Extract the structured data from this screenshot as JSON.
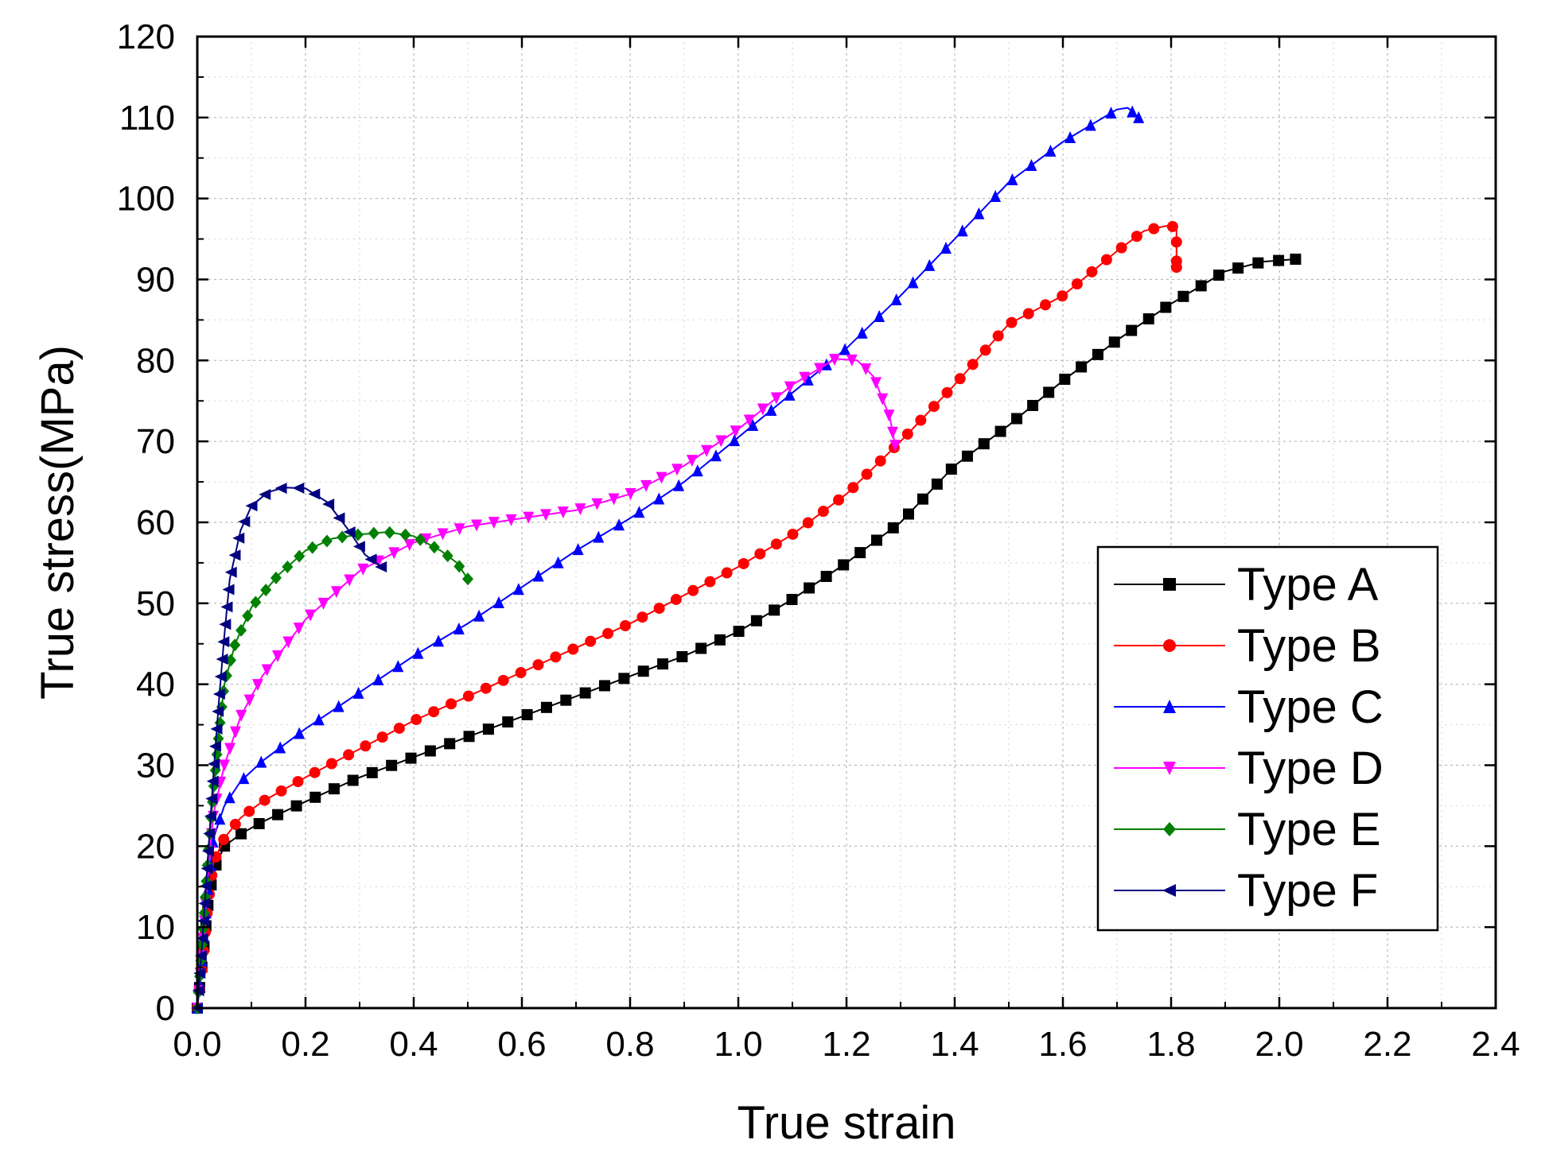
{
  "chart_data": {
    "type": "line",
    "title": "",
    "xlabel": "True strain",
    "ylabel": "True stress(MPa)",
    "xlim": [
      0.0,
      2.4
    ],
    "ylim": [
      0,
      120
    ],
    "xticks": [
      "0.0",
      "0.2",
      "0.4",
      "0.6",
      "0.8",
      "1.0",
      "1.2",
      "1.4",
      "1.6",
      "1.8",
      "2.0",
      "2.2",
      "2.4"
    ],
    "yticks": [
      "0",
      "10",
      "20",
      "30",
      "40",
      "50",
      "60",
      "70",
      "80",
      "90",
      "100",
      "110",
      "120"
    ],
    "grid": true,
    "legend_position": "right",
    "series": [
      {
        "name": "Type A",
        "color": "#000000",
        "marker": "square",
        "x": [
          0.0,
          0.01,
          0.02,
          0.03,
          0.05,
          0.08,
          0.12,
          0.2,
          0.3,
          0.4,
          0.5,
          0.6,
          0.7,
          0.8,
          0.9,
          1.0,
          1.1,
          1.2,
          1.3,
          1.4,
          1.5,
          1.6,
          1.7,
          1.8,
          1.9,
          1.97,
          2.03
        ],
        "y": [
          0,
          6,
          13,
          17,
          20,
          21.5,
          23,
          25.5,
          28.5,
          31,
          33.5,
          36,
          38.5,
          41,
          43.5,
          46.5,
          50.5,
          55,
          60,
          67,
          72,
          77.5,
          82.5,
          87,
          91,
          92.2,
          92.5
        ]
      },
      {
        "name": "Type B",
        "color": "#ff0000",
        "marker": "circle",
        "x": [
          0.0,
          0.01,
          0.02,
          0.03,
          0.05,
          0.08,
          0.12,
          0.2,
          0.3,
          0.4,
          0.5,
          0.6,
          0.7,
          0.8,
          0.9,
          1.0,
          1.1,
          1.2,
          1.3,
          1.4,
          1.5,
          1.6,
          1.7,
          1.75,
          1.79,
          1.81,
          1.81
        ],
        "y": [
          0,
          6,
          13,
          18,
          21,
          23.5,
          25.5,
          28.5,
          32,
          35.5,
          38.5,
          41.5,
          44.5,
          47.5,
          51,
          54.5,
          58.5,
          63.5,
          70,
          77,
          84.5,
          88,
          93.5,
          96,
          96.6,
          96.5,
          91.5
        ]
      },
      {
        "name": "Type C",
        "color": "#0000ff",
        "marker": "triangle-up",
        "x": [
          0.0,
          0.01,
          0.02,
          0.03,
          0.05,
          0.08,
          0.12,
          0.2,
          0.3,
          0.4,
          0.5,
          0.6,
          0.7,
          0.8,
          0.9,
          1.0,
          1.1,
          1.2,
          1.3,
          1.4,
          1.5,
          1.6,
          1.7,
          1.72,
          1.74
        ],
        "y": [
          0,
          7,
          15,
          21,
          25,
          28,
          30.5,
          34.5,
          39,
          43.5,
          47.5,
          52,
          56.5,
          60.5,
          65,
          70.5,
          76,
          81.5,
          88,
          95,
          102,
          107,
          111,
          111.2,
          110
        ]
      },
      {
        "name": "Type D",
        "color": "#ff00ff",
        "marker": "triangle-down",
        "x": [
          0.0,
          0.01,
          0.02,
          0.03,
          0.05,
          0.08,
          0.12,
          0.2,
          0.3,
          0.4,
          0.5,
          0.6,
          0.7,
          0.8,
          0.9,
          1.0,
          1.1,
          1.18,
          1.22,
          1.25,
          1.28,
          1.29
        ],
        "y": [
          0,
          8,
          17,
          24,
          30,
          36,
          41,
          48,
          54,
          57.5,
          59.5,
          60.5,
          61.5,
          63.5,
          67,
          71.5,
          77,
          80.2,
          80,
          78,
          73,
          69.5
        ]
      },
      {
        "name": "Type E",
        "color": "#008000",
        "marker": "diamond",
        "x": [
          0.0,
          0.01,
          0.02,
          0.03,
          0.04,
          0.05,
          0.07,
          0.1,
          0.15,
          0.2,
          0.25,
          0.3,
          0.35,
          0.4,
          0.45,
          0.48,
          0.5
        ],
        "y": [
          0,
          9,
          19,
          27,
          34,
          40,
          45,
          49.5,
          53.5,
          56.5,
          58,
          58.5,
          58.8,
          58.3,
          56.5,
          55,
          53
        ]
      },
      {
        "name": "Type F",
        "color": "#000080",
        "marker": "triangle-left",
        "x": [
          0.0,
          0.01,
          0.02,
          0.03,
          0.04,
          0.05,
          0.06,
          0.08,
          0.1,
          0.13,
          0.16,
          0.2,
          0.24,
          0.28,
          0.31,
          0.34
        ],
        "y": [
          0,
          9,
          19,
          29,
          38,
          46,
          53,
          59,
          62,
          63.7,
          64.3,
          64.2,
          62.5,
          59,
          56,
          54.5
        ]
      }
    ]
  }
}
